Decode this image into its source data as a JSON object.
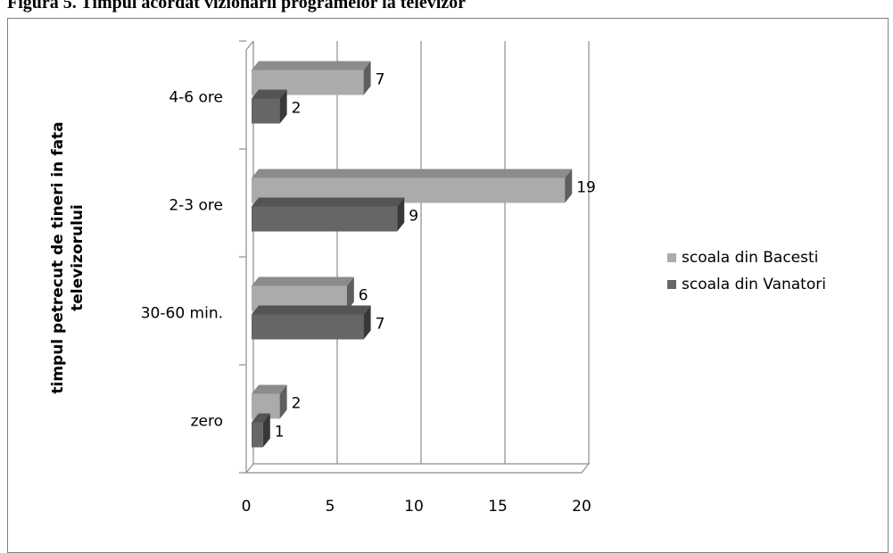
{
  "title": "Figura 5. Timpul acordat vizionarii programelor la televizor",
  "chart_data": {
    "type": "bar",
    "orientation": "horizontal",
    "three_d": true,
    "categories": [
      "zero",
      "30-60 min.",
      "2-3 ore",
      "4-6 ore"
    ],
    "series": [
      {
        "name": "scoala din Bacesti",
        "values": [
          2,
          6,
          19,
          7
        ],
        "color": "#ababab"
      },
      {
        "name": "scoala din Vanatori",
        "values": [
          1,
          7,
          9,
          2
        ],
        "color": "#666666"
      }
    ],
    "ylabel": "timpul petrecut de tineri in fata televizorului",
    "xlabel": "",
    "xlim": [
      0,
      20
    ],
    "xticks": [
      0,
      5,
      10,
      15,
      20
    ],
    "grid": "vertical",
    "legend": "right"
  }
}
